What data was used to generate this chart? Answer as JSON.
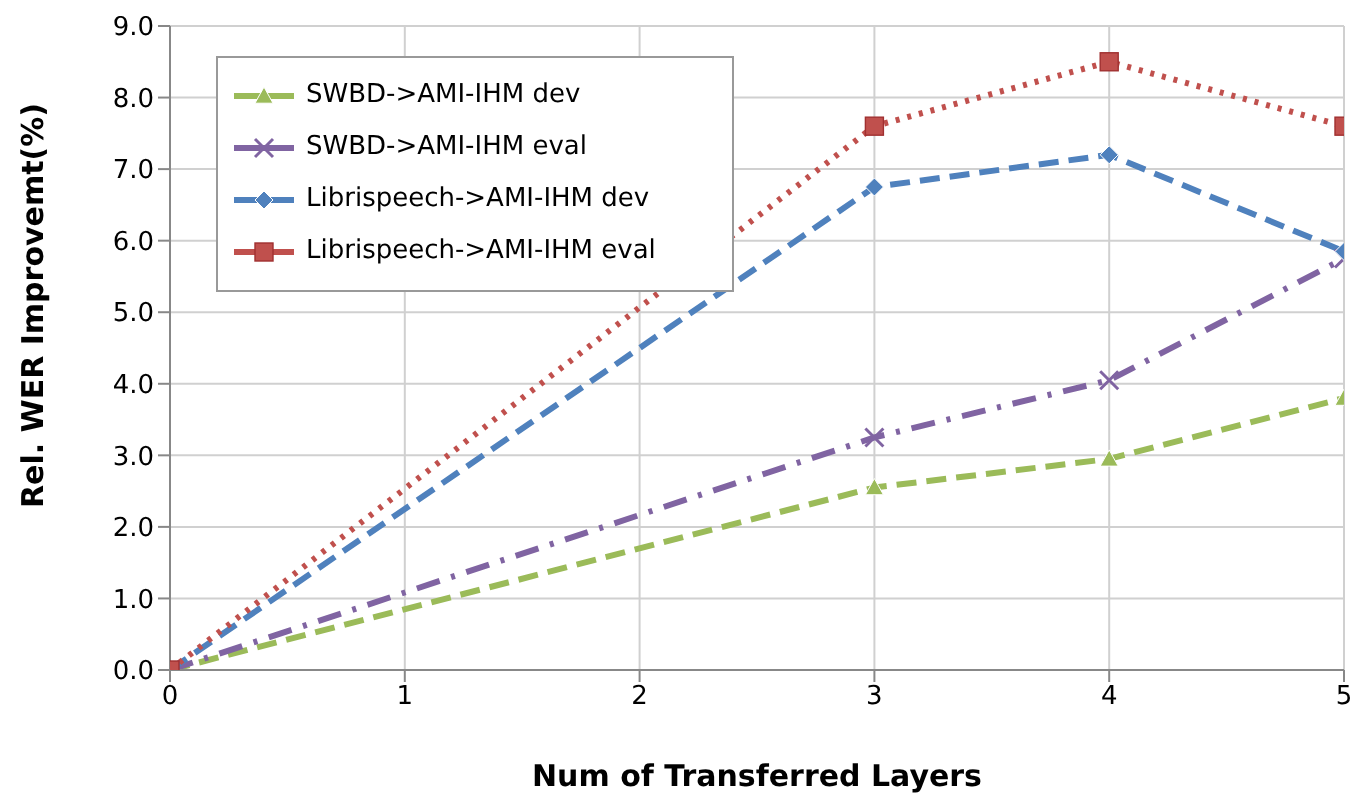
{
  "chart_data": {
    "type": "line",
    "xlabel": "Num of Transferred Layers",
    "ylabel": "Rel. WER Improvemt(%)",
    "x": [
      0,
      3,
      4,
      5
    ],
    "series": [
      {
        "name": "SWBD->AMI-IHM dev",
        "color": "#9bbb59",
        "values": [
          0,
          2.55,
          2.95,
          3.8
        ],
        "marker": "triangle",
        "line_style": "dashed"
      },
      {
        "name": "SWBD->AMI-IHM eval",
        "color": "#8064a2",
        "values": [
          0,
          3.25,
          4.05,
          5.75
        ],
        "marker": "cross",
        "line_style": "dashdot"
      },
      {
        "name": "Librispeech->AMI-IHM dev",
        "color": "#4f81bd",
        "values": [
          0,
          6.75,
          7.2,
          5.85
        ],
        "marker": "diamond",
        "line_style": "dashed"
      },
      {
        "name": "Librispeech->AMI-IHM eval",
        "color": "#c0504d",
        "values": [
          0,
          7.6,
          8.5,
          7.6
        ],
        "marker": "square",
        "line_style": "dotted"
      }
    ],
    "xlim": [
      0,
      5
    ],
    "xticks": [
      0,
      1,
      2,
      3,
      4,
      5
    ],
    "ylim": [
      0,
      9
    ],
    "yticks": [
      {
        "value": 0,
        "label": "0.0"
      },
      {
        "value": 1,
        "label": "1.0"
      },
      {
        "value": 2,
        "label": "2.0"
      },
      {
        "value": 3,
        "label": "3.0"
      },
      {
        "value": 4,
        "label": "4.0"
      },
      {
        "value": 5,
        "label": "5.0"
      },
      {
        "value": 6,
        "label": "6.0"
      },
      {
        "value": 7,
        "label": "7.0"
      },
      {
        "value": 8,
        "label": "8.0"
      },
      {
        "value": 9,
        "label": "9.0"
      }
    ],
    "grid": true,
    "legend": "top left"
  }
}
